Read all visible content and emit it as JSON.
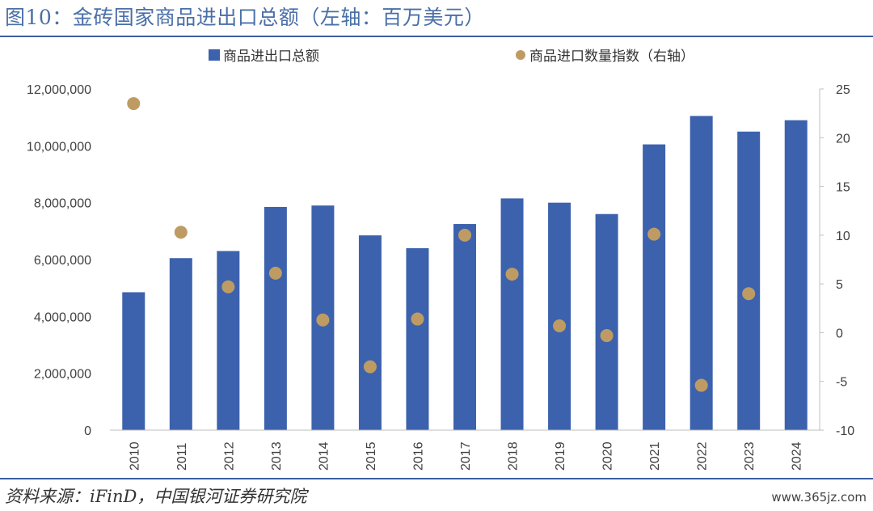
{
  "header": {
    "title": "图10：金砖国家商品进出口总额（左轴：百万美元）"
  },
  "footer": {
    "source": "资料来源：iFinD，中国银河证券研究院",
    "watermark": "www.365jz.com"
  },
  "colors": {
    "bar": "#3c62ad",
    "dot": "#bf9b64",
    "rule": "#3d5fa3",
    "title": "#4a6fa8"
  },
  "chart_data": {
    "type": "bar",
    "categories": [
      "2010",
      "2011",
      "2012",
      "2013",
      "2014",
      "2015",
      "2016",
      "2017",
      "2018",
      "2019",
      "2020",
      "2021",
      "2022",
      "2023",
      "2024"
    ],
    "series": [
      {
        "name": "商品进出口总额",
        "type": "bar",
        "axis": "left",
        "values": [
          4850000,
          6050000,
          6300000,
          7850000,
          7900000,
          6850000,
          6400000,
          7250000,
          8150000,
          8000000,
          7600000,
          10050000,
          11050000,
          10500000,
          10900000
        ]
      },
      {
        "name": "商品进口数量指数（右轴）",
        "type": "scatter",
        "axis": "right",
        "values": [
          23.5,
          10.3,
          4.7,
          6.1,
          1.3,
          -3.5,
          1.4,
          10.0,
          6.0,
          0.7,
          -0.3,
          10.1,
          null,
          4.0,
          null
        ]
      },
      {
        "name": "",
        "type": "scatter",
        "axis": "right",
        "values": [
          null,
          null,
          null,
          null,
          null,
          null,
          null,
          null,
          null,
          null,
          null,
          null,
          -5.4,
          null,
          null
        ]
      }
    ],
    "ylim": [
      0,
      12000000
    ],
    "y2lim": [
      -10,
      25
    ],
    "yticks": [
      "12,000,000",
      "10,000,000",
      "8,000,000",
      "6,000,000",
      "4,000,000",
      "2,000,000",
      "0"
    ],
    "y2ticks": [
      "25",
      "20",
      "15",
      "10",
      "5",
      "0",
      "-5",
      "-10"
    ],
    "legend": [
      "商品进出口总额",
      "商品进口数量指数（右轴）"
    ],
    "legend_position": "top",
    "grid": false
  }
}
